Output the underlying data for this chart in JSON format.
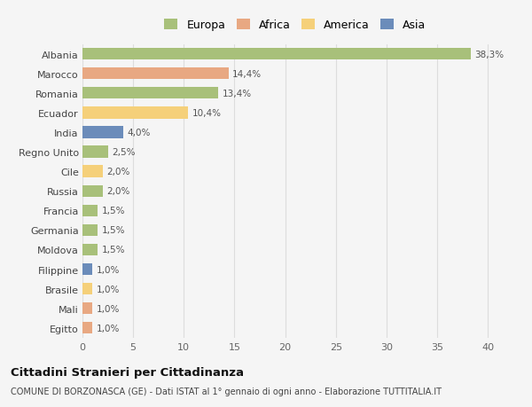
{
  "countries": [
    "Albania",
    "Marocco",
    "Romania",
    "Ecuador",
    "India",
    "Regno Unito",
    "Cile",
    "Russia",
    "Francia",
    "Germania",
    "Moldova",
    "Filippine",
    "Brasile",
    "Mali",
    "Egitto"
  ],
  "values": [
    38.3,
    14.4,
    13.4,
    10.4,
    4.0,
    2.5,
    2.0,
    2.0,
    1.5,
    1.5,
    1.5,
    1.0,
    1.0,
    1.0,
    1.0
  ],
  "labels": [
    "38,3%",
    "14,4%",
    "13,4%",
    "10,4%",
    "4,0%",
    "2,5%",
    "2,0%",
    "2,0%",
    "1,5%",
    "1,5%",
    "1,5%",
    "1,0%",
    "1,0%",
    "1,0%",
    "1,0%"
  ],
  "continents": [
    "Europa",
    "Africa",
    "Europa",
    "America",
    "Asia",
    "Europa",
    "America",
    "Europa",
    "Europa",
    "Europa",
    "Europa",
    "Asia",
    "America",
    "Africa",
    "Africa"
  ],
  "continent_colors": {
    "Europa": "#a8c07a",
    "Africa": "#e8a882",
    "America": "#f5d07a",
    "Asia": "#6b8cba"
  },
  "legend_order": [
    "Europa",
    "Africa",
    "America",
    "Asia"
  ],
  "title": "Cittadini Stranieri per Cittadinanza",
  "subtitle": "COMUNE DI BORZONASCA (GE) - Dati ISTAT al 1° gennaio di ogni anno - Elaborazione TUTTITALIA.IT",
  "xlim": [
    0,
    42
  ],
  "xticks": [
    0,
    5,
    10,
    15,
    20,
    25,
    30,
    35,
    40
  ],
  "background_color": "#f5f5f5",
  "grid_color": "#dddddd"
}
